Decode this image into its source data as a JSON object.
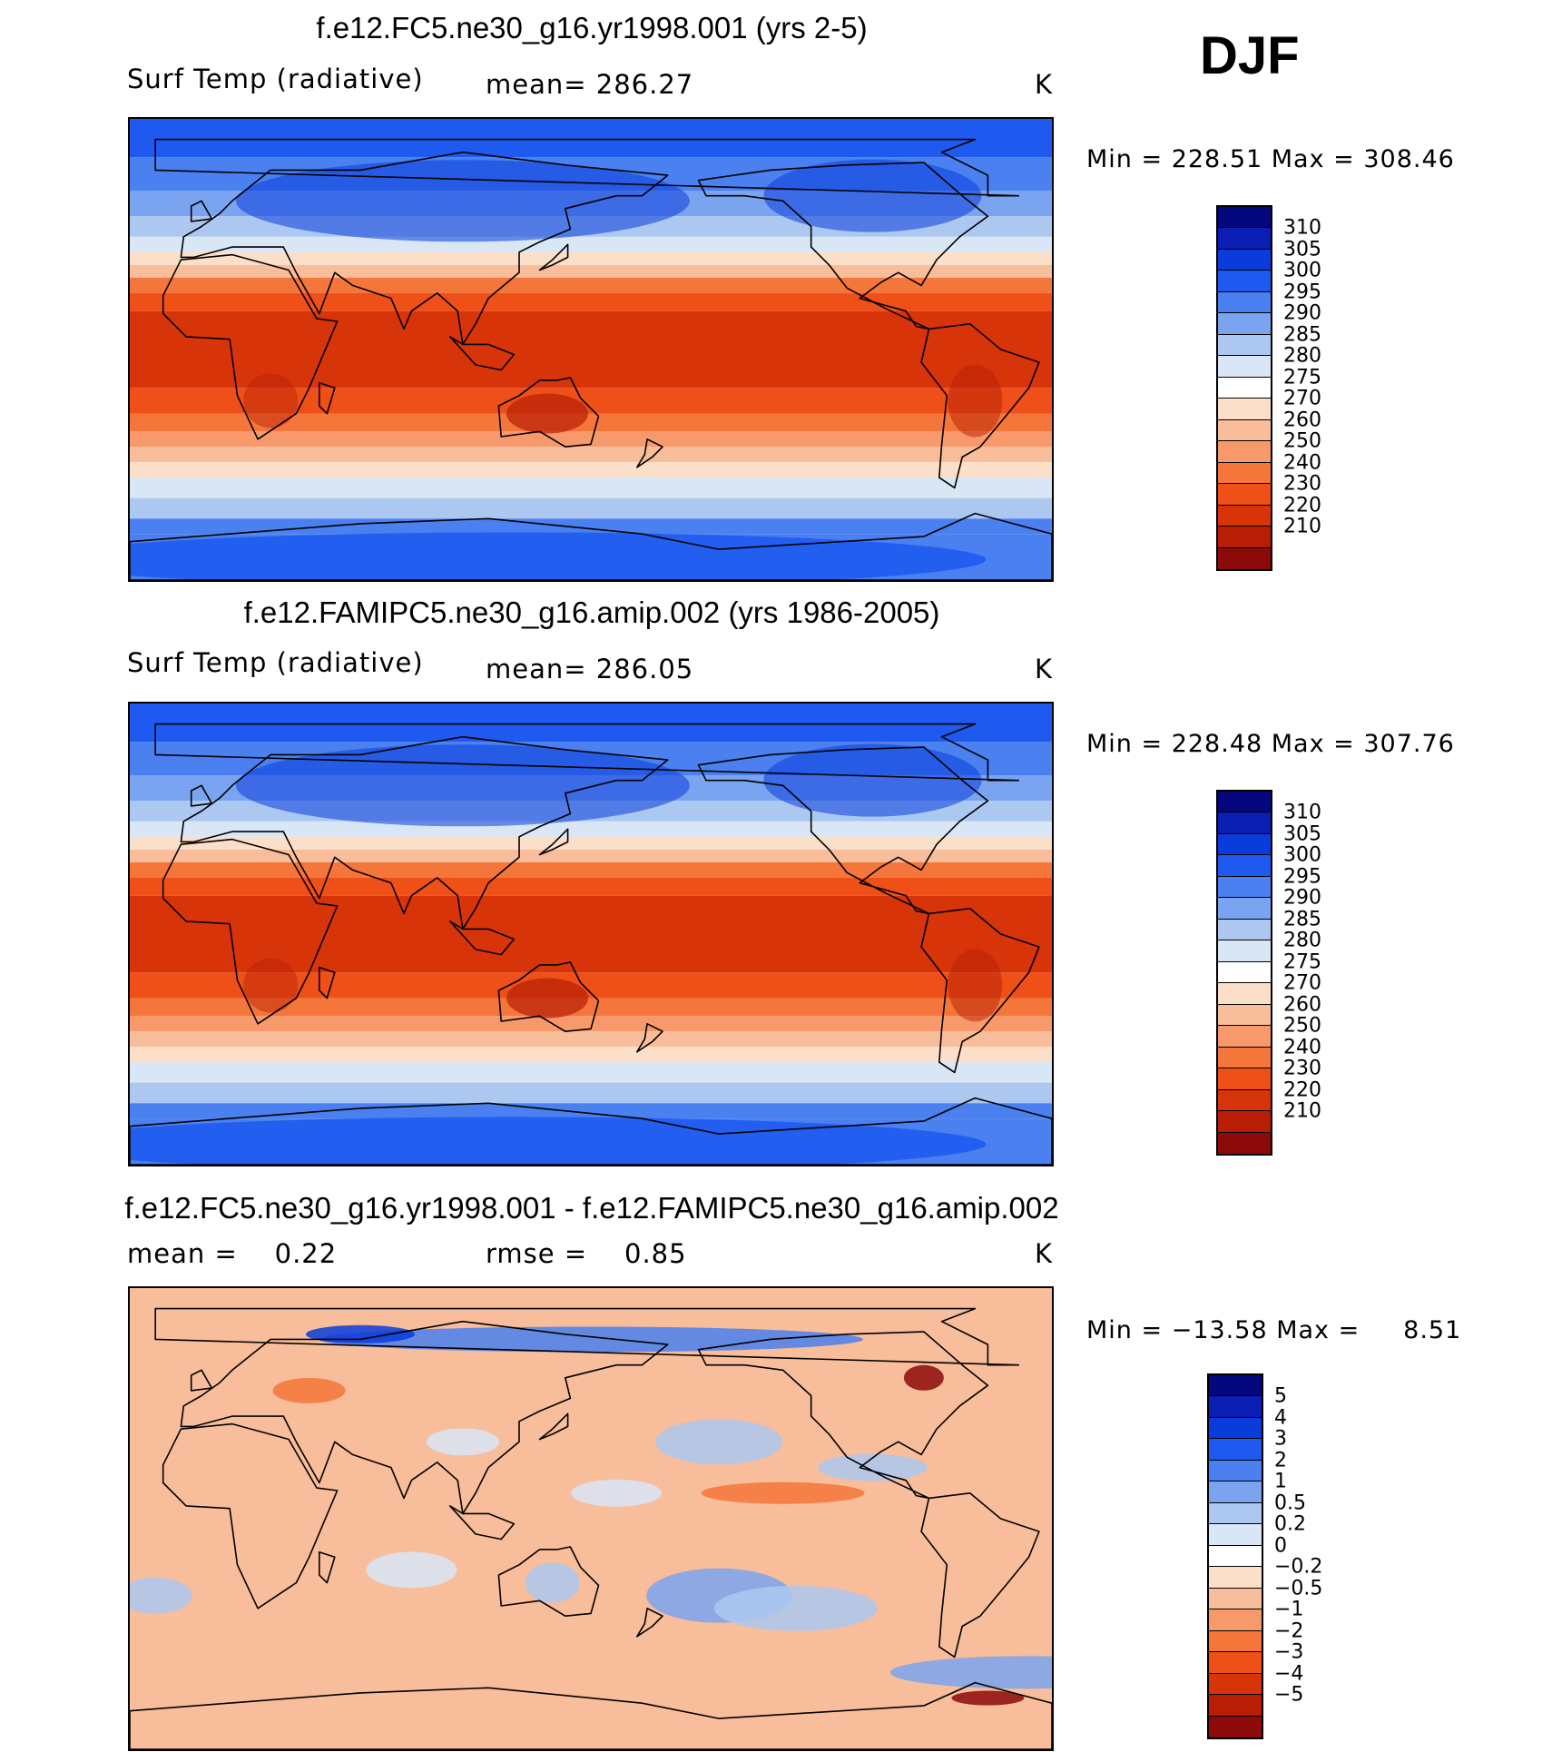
{
  "season": "DJF",
  "units": "K",
  "panels": [
    {
      "title": "f.e12.FC5.ne30_g16.yr1998.001 (yrs 2-5)",
      "variable": "Surf Temp (radiative)",
      "stat": "mean= 286.27",
      "units": "K",
      "minmax": "Min = 228.51 Max = 308.46",
      "kind": "abs"
    },
    {
      "title": "f.e12.FAMIPC5.ne30_g16.amip.002 (yrs 1986-2005)",
      "variable": "Surf Temp (radiative)",
      "stat": "mean= 286.05",
      "units": "K",
      "minmax": "Min = 228.48 Max = 307.76",
      "kind": "abs"
    },
    {
      "title": "f.e12.FC5.ne30_g16.yr1998.001 - f.e12.FAMIPC5.ne30_g16.amip.002",
      "variable": "mean =    0.22",
      "stat": "rmse =    0.85",
      "units": "K",
      "minmax": "Min = −13.58 Max =     8.51",
      "kind": "diff"
    }
  ],
  "colorbars": {
    "abs": {
      "labels": [
        "310",
        "305",
        "300",
        "295",
        "290",
        "285",
        "280",
        "275",
        "270",
        "260",
        "250",
        "240",
        "230",
        "220",
        "210"
      ],
      "colors": [
        "#8c0a0a",
        "#b81e05",
        "#d8340a",
        "#ef5018",
        "#f5763a",
        "#f7996a",
        "#f8bd9a",
        "#fcdfc8",
        "#ffffff",
        "#d8e6f6",
        "#acc8f0",
        "#7aa4ef",
        "#4a80f0",
        "#1e5af0",
        "#0a3cdc",
        "#0a1eb4",
        "#05087d"
      ]
    },
    "diff": {
      "labels": [
        "5",
        "4",
        "3",
        "2",
        "1",
        "0.5",
        "0.2",
        "0",
        "−0.2",
        "−0.5",
        "−1",
        "−2",
        "−3",
        "−4",
        "−5"
      ],
      "colors": [
        "#8c0a0a",
        "#b81e05",
        "#d8340a",
        "#ef5018",
        "#f5763a",
        "#f7996a",
        "#f8bd9a",
        "#fcdfc8",
        "#ffffff",
        "#d8e6f6",
        "#acc8f0",
        "#7aa4ef",
        "#4a80f0",
        "#1e5af0",
        "#0a3cdc",
        "#0a1eb4",
        "#05087d"
      ]
    }
  }
}
